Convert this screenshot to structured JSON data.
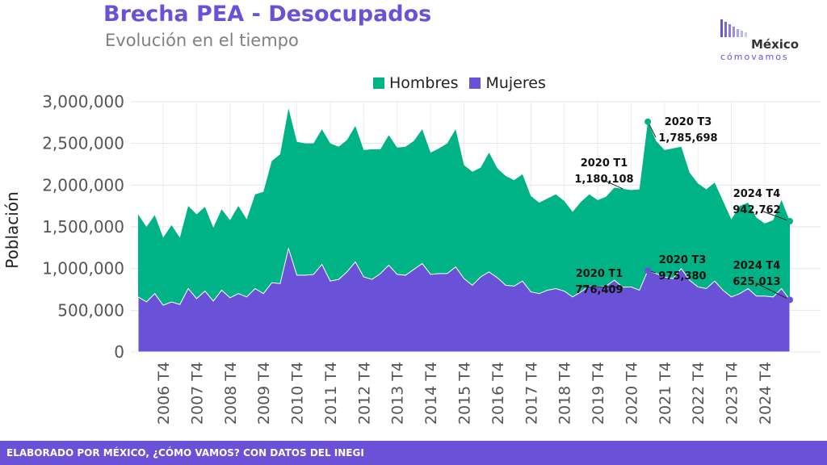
{
  "header": {
    "title": "Brecha PEA - Desocupados",
    "subtitle": "Evolución en el tiempo"
  },
  "logo": {
    "name": "México",
    "tagline": "cómovamos"
  },
  "footer": {
    "text": "ELABORADO POR MÉXICO, ¿CÓMO VAMOS? CON DATOS DEL INEGI"
  },
  "colors": {
    "hombres": "#00B386",
    "mujeres": "#6A52D8",
    "brand": "#6A52D8"
  },
  "chart_data": {
    "type": "area",
    "stacked": true,
    "title": "Brecha PEA - Desocupados",
    "subtitle": "Evolución en el tiempo",
    "ylabel": "Población",
    "xlabel": "",
    "ylim": [
      0,
      3000000
    ],
    "yticks": [
      0,
      500000,
      1000000,
      1500000,
      2000000,
      2500000,
      3000000
    ],
    "ytick_labels": [
      "0",
      "500,000",
      "1,000,000",
      "1,500,000",
      "2,000,000",
      "2,500,000",
      "3,000,000"
    ],
    "xtick_labels": [
      "2006 T4",
      "2007 T4",
      "2008 T4",
      "2009 T4",
      "2010 T4",
      "2011 T4",
      "2012 T4",
      "2013 T4",
      "2014 T4",
      "2015 T4",
      "2016 T4",
      "2017 T4",
      "2018 T4",
      "2019 T4",
      "2020 T4",
      "2021 T4",
      "2022 T4",
      "2023 T4",
      "2024 T4"
    ],
    "grid": true,
    "legend_position": "top-center",
    "series": [
      {
        "name": "Mujeres",
        "color": "#6A52D8",
        "values": [
          660000,
          600000,
          700000,
          560000,
          600000,
          570000,
          760000,
          640000,
          730000,
          610000,
          740000,
          650000,
          700000,
          660000,
          760000,
          700000,
          830000,
          820000,
          1240000,
          920000,
          920000,
          930000,
          1050000,
          850000,
          870000,
          960000,
          1080000,
          900000,
          870000,
          940000,
          1040000,
          930000,
          920000,
          990000,
          1060000,
          930000,
          940000,
          940000,
          1020000,
          880000,
          800000,
          900000,
          960000,
          890000,
          800000,
          790000,
          850000,
          720000,
          700000,
          740000,
          760000,
          730000,
          660000,
          720000,
          790000,
          780000,
          790000,
          860000,
          776409,
          780000,
          740000,
          975380,
          940000,
          900000,
          880000,
          1000000,
          860000,
          780000,
          760000,
          850000,
          740000,
          660000,
          700000,
          760000,
          670000,
          670000,
          660000,
          760000,
          625013
        ]
      },
      {
        "name": "Hombres",
        "color": "#00B386",
        "values": [
          990000,
          900000,
          940000,
          810000,
          920000,
          800000,
          990000,
          1010000,
          1010000,
          880000,
          970000,
          930000,
          1050000,
          930000,
          1130000,
          1220000,
          1460000,
          1550000,
          1680000,
          1600000,
          1580000,
          1570000,
          1620000,
          1650000,
          1590000,
          1580000,
          1630000,
          1520000,
          1560000,
          1490000,
          1560000,
          1520000,
          1540000,
          1540000,
          1610000,
          1460000,
          1500000,
          1560000,
          1650000,
          1360000,
          1360000,
          1310000,
          1430000,
          1310000,
          1310000,
          1270000,
          1280000,
          1150000,
          1090000,
          1100000,
          1130000,
          1080000,
          1020000,
          1080000,
          1100000,
          1040000,
          1070000,
          1110000,
          1180108,
          1160000,
          1210000,
          1785698,
          1590000,
          1520000,
          1560000,
          1460000,
          1290000,
          1240000,
          1190000,
          1180000,
          1070000,
          930000,
          1050000,
          1030000,
          940000,
          870000,
          920000,
          1060000,
          942762
        ]
      }
    ],
    "annotations": [
      {
        "series": "Hombres",
        "label": "2020 T1",
        "value": "1,180,108"
      },
      {
        "series": "Hombres",
        "label": "2020 T3",
        "value": "1,785,698"
      },
      {
        "series": "Hombres",
        "label": "2024 T4",
        "value": "942,762"
      },
      {
        "series": "Mujeres",
        "label": "2020 T1",
        "value": "776,409"
      },
      {
        "series": "Mujeres",
        "label": "2020 T3",
        "value": "975,380"
      },
      {
        "series": "Mujeres",
        "label": "2024 T4",
        "value": "625,013"
      }
    ]
  }
}
